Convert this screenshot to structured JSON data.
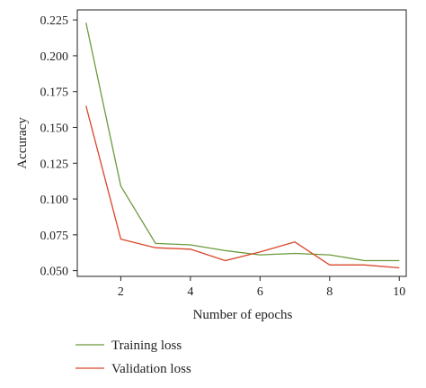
{
  "chart_data": {
    "type": "line",
    "xlabel": "Number of epochs",
    "ylabel": "Accuracy",
    "x": [
      1,
      2,
      3,
      4,
      5,
      6,
      7,
      8,
      9,
      10
    ],
    "xlim": [
      0.75,
      10.2
    ],
    "ylim": [
      0.046,
      0.232
    ],
    "xticks": [
      2,
      4,
      6,
      8,
      10
    ],
    "xtick_labels": [
      "2",
      "4",
      "6",
      "8",
      "10"
    ],
    "yticks": [
      0.05,
      0.075,
      0.1,
      0.125,
      0.15,
      0.175,
      0.2,
      0.225
    ],
    "ytick_labels": [
      "0.050",
      "0.075",
      "0.100",
      "0.125",
      "0.150",
      "0.175",
      "0.200",
      "0.225"
    ],
    "grid": false,
    "legend_position": "bottom-left",
    "series": [
      {
        "name": "Training loss",
        "color": "#6a9b3d",
        "values": [
          0.223,
          0.109,
          0.069,
          0.068,
          0.064,
          0.061,
          0.062,
          0.061,
          0.057,
          0.057
        ]
      },
      {
        "name": "Validation loss",
        "color": "#d9472b",
        "values": [
          0.165,
          0.072,
          0.066,
          0.065,
          0.057,
          0.063,
          0.07,
          0.054,
          0.054,
          0.052
        ]
      }
    ]
  }
}
